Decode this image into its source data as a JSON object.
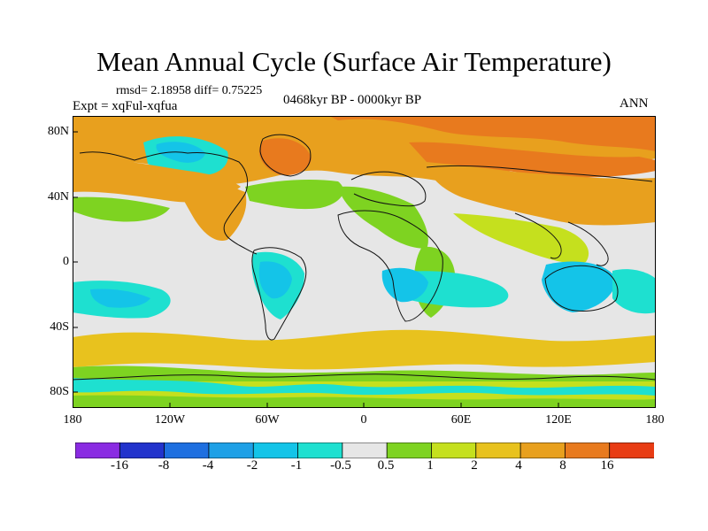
{
  "header": {
    "title": "Mean Annual Cycle (Surface Air Temperature)",
    "stats": "rmsd= 2.18958 diff= 0.75225",
    "experiment": "Expt = xqFul-xqfua",
    "period": "0468kyr BP - 0000kyr BP",
    "season": "ANN"
  },
  "axes": {
    "lat_labels": [
      "80N",
      "40N",
      "0",
      "40S",
      "80S"
    ],
    "lon_labels": [
      "180",
      "120W",
      "60W",
      "0",
      "60E",
      "120E",
      "180"
    ]
  },
  "colorbar": {
    "colors": [
      "#8a2be2",
      "#2233cc",
      "#1e6fe0",
      "#1ea0e6",
      "#14c4e8",
      "#1ee0d0",
      "#e6e6e6",
      "#7ed321",
      "#c5e01e",
      "#e8c21e",
      "#e8a01e",
      "#e87a1e",
      "#e83c14"
    ],
    "labels": [
      "-16",
      "-8",
      "-4",
      "-2",
      "-1",
      "-0.5",
      "0.5",
      "1",
      "2",
      "4",
      "8",
      "16"
    ]
  },
  "map_colors": {
    "ocean_neutral": "#e6e6e6",
    "warm_light": "#c5e01e",
    "warm_green": "#7ed321",
    "warm_yellow": "#e8c21e",
    "warm_orange": "#e8a01e",
    "warm_dark": "#e87a1e",
    "cool_cyan": "#1ee0d0",
    "cool_light": "#14c4e8",
    "cool_blue": "#1ea0e6",
    "coastline": "#111111"
  }
}
